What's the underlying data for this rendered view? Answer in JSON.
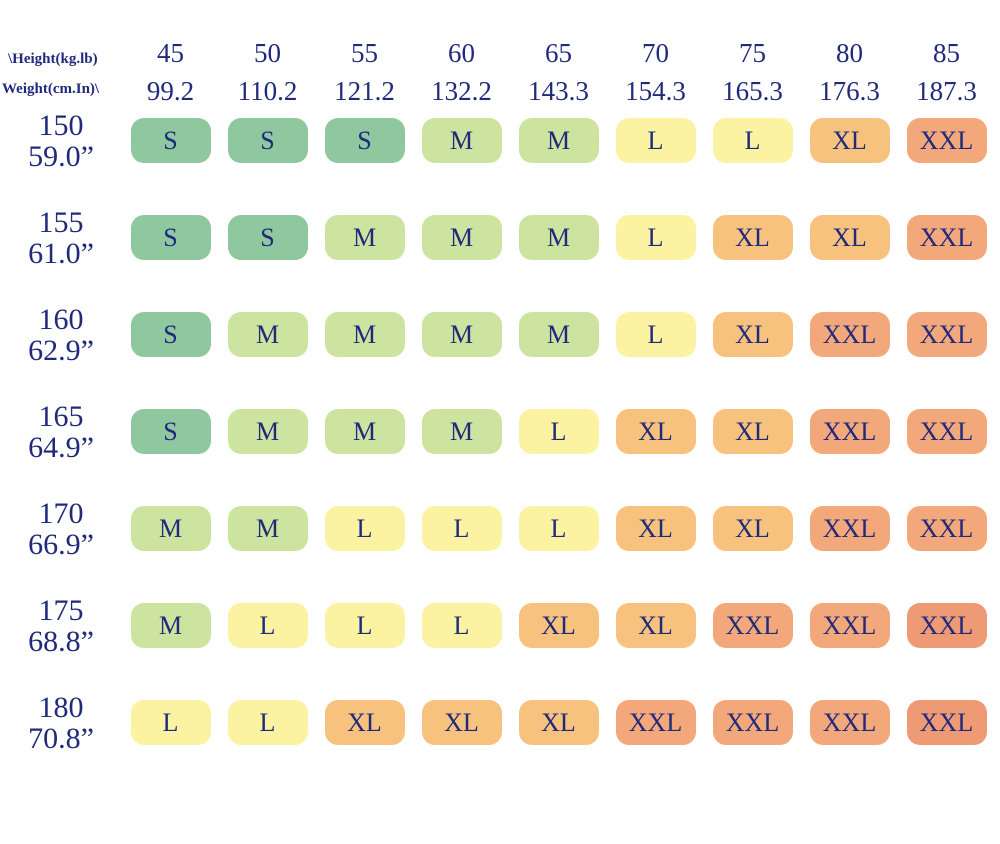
{
  "page": {
    "background_color": "#ffffff",
    "text_color": "#202a7c"
  },
  "chart_data": {
    "type": "table",
    "title": "",
    "corner": {
      "line1": "\\Height(kg.lb)",
      "line2": "Weight(cm.In)\\"
    },
    "size_colors": {
      "S": "#8fc79e",
      "M": "#cde3a0",
      "L": "#fbf3a2",
      "XL": "#f6c27d",
      "XXL": "#f2a87a",
      "XXL_dark": "#ee9a74"
    },
    "columns": [
      {
        "kg": "45",
        "lb": "99.2"
      },
      {
        "kg": "50",
        "lb": "110.2"
      },
      {
        "kg": "55",
        "lb": "121.2"
      },
      {
        "kg": "60",
        "lb": "132.2"
      },
      {
        "kg": "65",
        "lb": "143.3"
      },
      {
        "kg": "70",
        "lb": "154.3"
      },
      {
        "kg": "75",
        "lb": "165.3"
      },
      {
        "kg": "80",
        "lb": "176.3"
      },
      {
        "kg": "85",
        "lb": "187.3"
      }
    ],
    "rows": [
      {
        "cm": "150",
        "in": "59.0”",
        "cells": [
          {
            "size": "S",
            "color": "#8fc79e"
          },
          {
            "size": "S",
            "color": "#8fc79e"
          },
          {
            "size": "S",
            "color": "#8fc79e"
          },
          {
            "size": "M",
            "color": "#cde3a0"
          },
          {
            "size": "M",
            "color": "#cde3a0"
          },
          {
            "size": "L",
            "color": "#fbf3a2"
          },
          {
            "size": "L",
            "color": "#fbf3a2"
          },
          {
            "size": "XL",
            "color": "#f6c27d"
          },
          {
            "size": "XXL",
            "color": "#f2a87a"
          }
        ]
      },
      {
        "cm": "155",
        "in": "61.0”",
        "cells": [
          {
            "size": "S",
            "color": "#8fc79e"
          },
          {
            "size": "S",
            "color": "#8fc79e"
          },
          {
            "size": "M",
            "color": "#cde3a0"
          },
          {
            "size": "M",
            "color": "#cde3a0"
          },
          {
            "size": "M",
            "color": "#cde3a0"
          },
          {
            "size": "L",
            "color": "#fbf3a2"
          },
          {
            "size": "XL",
            "color": "#f6c27d"
          },
          {
            "size": "XL",
            "color": "#f6c27d"
          },
          {
            "size": "XXL",
            "color": "#f2a87a"
          }
        ]
      },
      {
        "cm": "160",
        "in": "62.9”",
        "cells": [
          {
            "size": "S",
            "color": "#8fc79e"
          },
          {
            "size": "M",
            "color": "#cde3a0"
          },
          {
            "size": "M",
            "color": "#cde3a0"
          },
          {
            "size": "M",
            "color": "#cde3a0"
          },
          {
            "size": "M",
            "color": "#cde3a0"
          },
          {
            "size": "L",
            "color": "#fbf3a2"
          },
          {
            "size": "XL",
            "color": "#f6c27d"
          },
          {
            "size": "XXL",
            "color": "#f2a87a"
          },
          {
            "size": "XXL",
            "color": "#f2a87a"
          }
        ]
      },
      {
        "cm": "165",
        "in": "64.9”",
        "cells": [
          {
            "size": "S",
            "color": "#8fc79e"
          },
          {
            "size": "M",
            "color": "#cde3a0"
          },
          {
            "size": "M",
            "color": "#cde3a0"
          },
          {
            "size": "M",
            "color": "#cde3a0"
          },
          {
            "size": "L",
            "color": "#fbf3a2"
          },
          {
            "size": "XL",
            "color": "#f6c27d"
          },
          {
            "size": "XL",
            "color": "#f6c27d"
          },
          {
            "size": "XXL",
            "color": "#f2a87a"
          },
          {
            "size": "XXL",
            "color": "#f2a87a"
          }
        ]
      },
      {
        "cm": "170",
        "in": "66.9”",
        "cells": [
          {
            "size": "M",
            "color": "#cde3a0"
          },
          {
            "size": "M",
            "color": "#cde3a0"
          },
          {
            "size": "L",
            "color": "#fbf3a2"
          },
          {
            "size": "L",
            "color": "#fbf3a2"
          },
          {
            "size": "L",
            "color": "#fbf3a2"
          },
          {
            "size": "XL",
            "color": "#f6c27d"
          },
          {
            "size": "XL",
            "color": "#f6c27d"
          },
          {
            "size": "XXL",
            "color": "#f2a87a"
          },
          {
            "size": "XXL",
            "color": "#f2a87a"
          }
        ]
      },
      {
        "cm": "175",
        "in": "68.8”",
        "cells": [
          {
            "size": "M",
            "color": "#cde3a0"
          },
          {
            "size": "L",
            "color": "#fbf3a2"
          },
          {
            "size": "L",
            "color": "#fbf3a2"
          },
          {
            "size": "L",
            "color": "#fbf3a2"
          },
          {
            "size": "XL",
            "color": "#f6c27d"
          },
          {
            "size": "XL",
            "color": "#f6c27d"
          },
          {
            "size": "XXL",
            "color": "#f2a87a"
          },
          {
            "size": "XXL",
            "color": "#f2a87a"
          },
          {
            "size": "XXL",
            "color": "#ee9a74"
          }
        ]
      },
      {
        "cm": "180",
        "in": "70.8”",
        "cells": [
          {
            "size": "L",
            "color": "#fbf3a2"
          },
          {
            "size": "L",
            "color": "#fbf3a2"
          },
          {
            "size": "XL",
            "color": "#f6c27d"
          },
          {
            "size": "XL",
            "color": "#f6c27d"
          },
          {
            "size": "XL",
            "color": "#f6c27d"
          },
          {
            "size": "XXL",
            "color": "#f2a87a"
          },
          {
            "size": "XXL",
            "color": "#f2a87a"
          },
          {
            "size": "XXL",
            "color": "#f2a87a"
          },
          {
            "size": "XXL",
            "color": "#ee9a74"
          }
        ]
      }
    ]
  }
}
